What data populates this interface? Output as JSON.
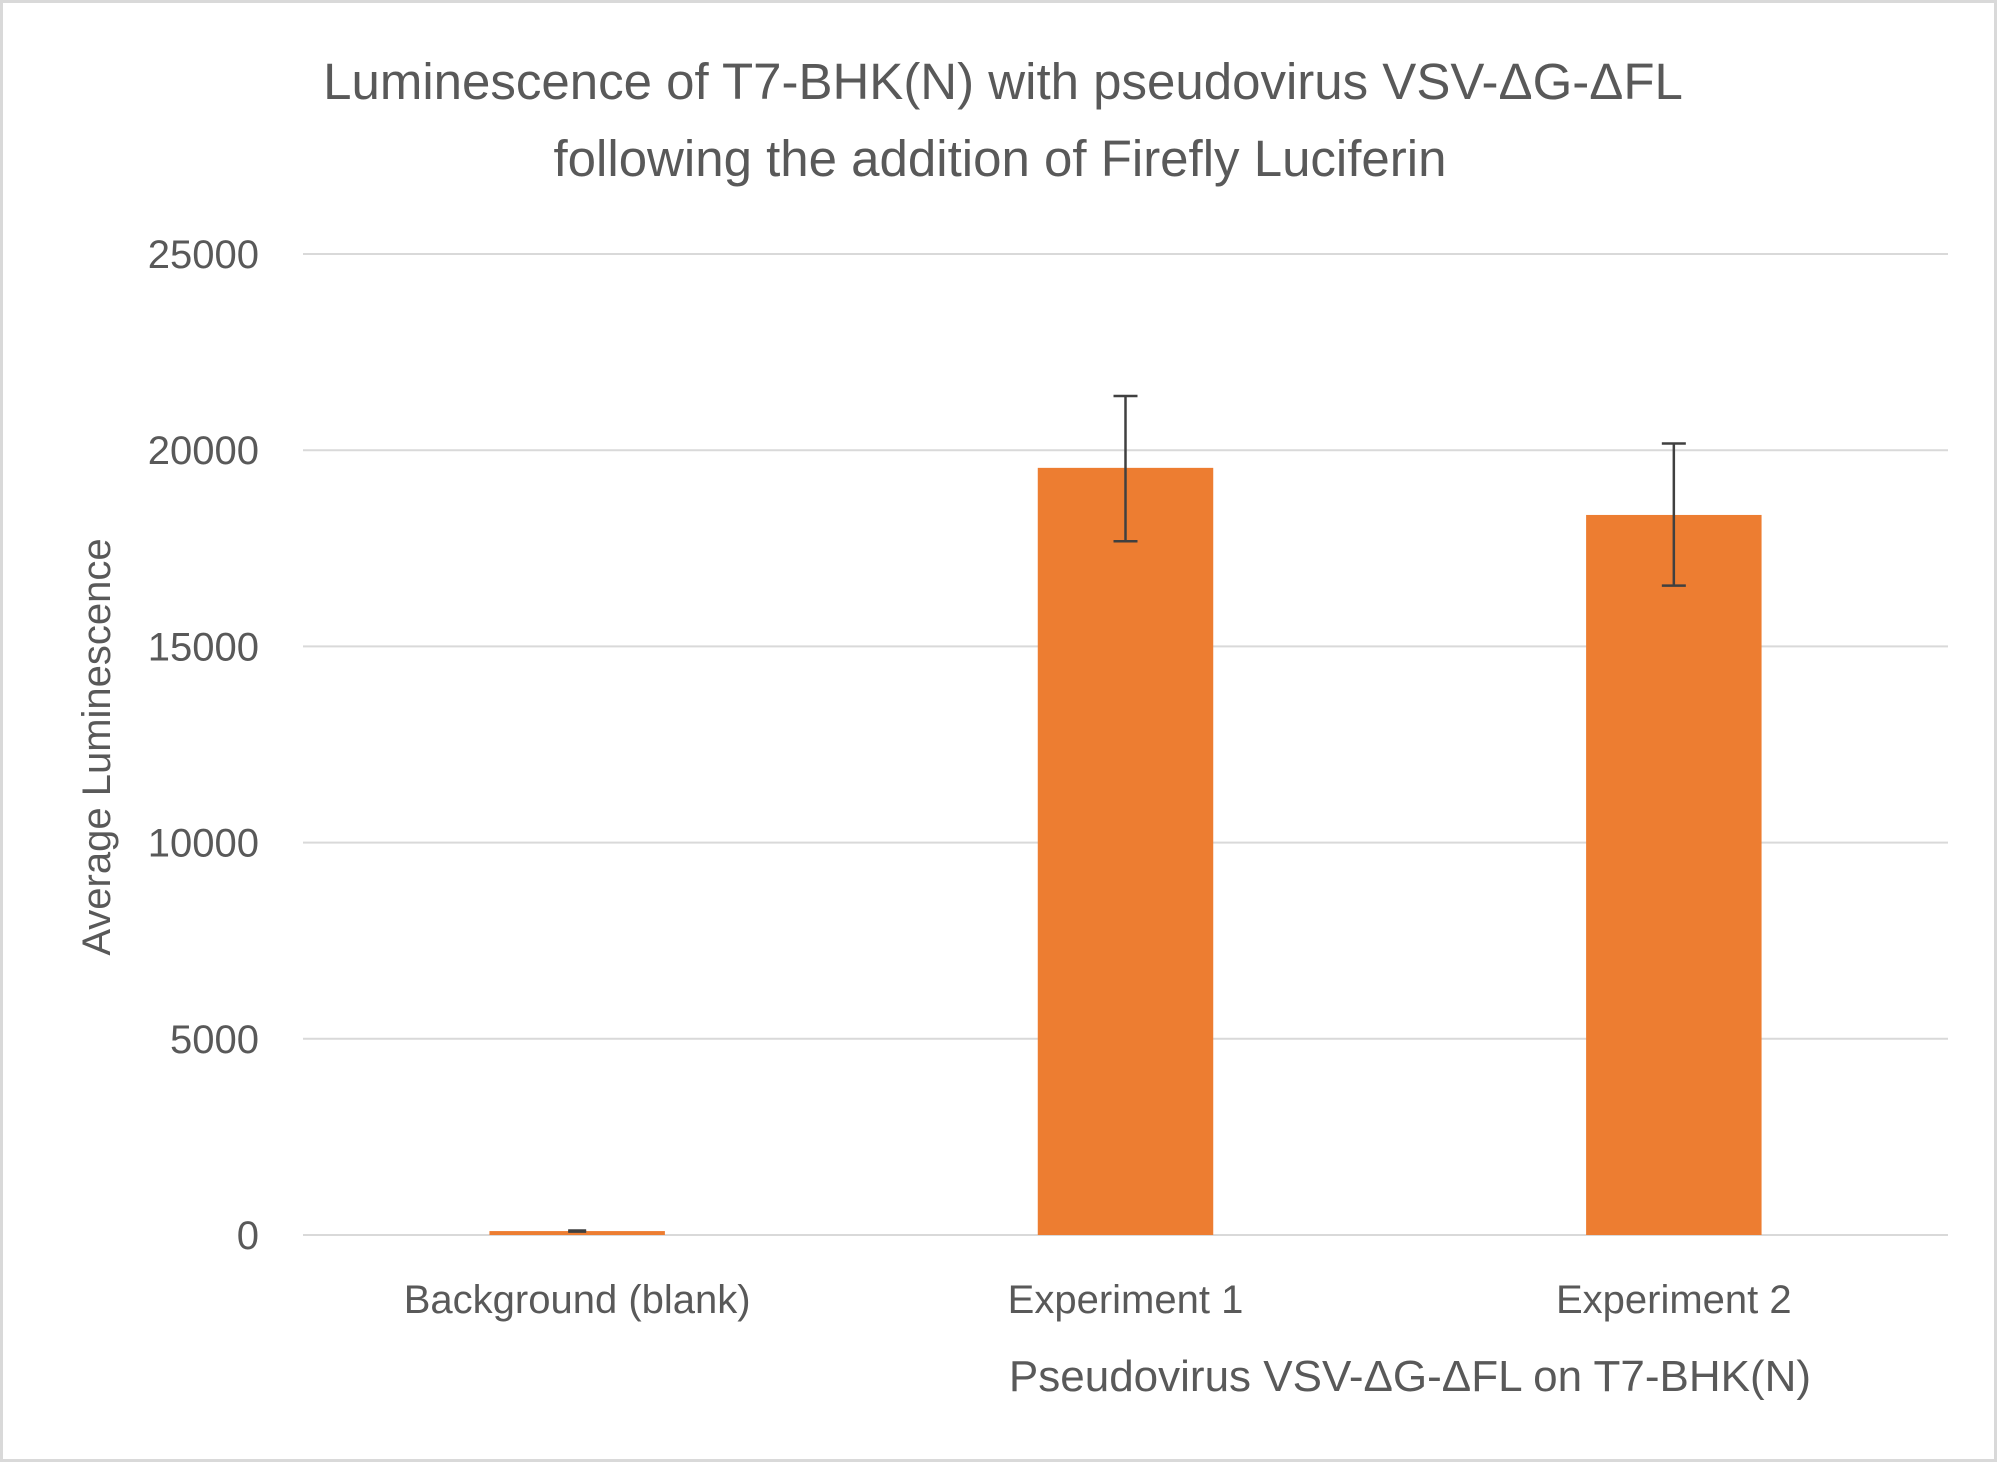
{
  "chart_data": {
    "type": "bar",
    "title_lines": [
      "Luminescence of T7-BHK(N) with pseudovirus VSV-ΔG-ΔFL",
      "following the addition of Firefly Luciferin"
    ],
    "xlabel": "Pseudovirus VSV-ΔG-ΔFL on T7-BHK(N)",
    "ylabel": "Average Luminescence",
    "categories": [
      "Background (blank)",
      "Experiment 1",
      "Experiment 2"
    ],
    "values": [
      100,
      19550,
      18350
    ],
    "error_low": [
      85,
      17680,
      16550
    ],
    "error_high": [
      115,
      21380,
      20170
    ],
    "ylim": [
      0,
      25000
    ],
    "yticks": [
      "0",
      "5000",
      "10000",
      "15000",
      "20000",
      "25000"
    ],
    "grid": true,
    "legend": "none",
    "colors": {
      "bar": "#ED7D31",
      "grid": "#d9d9d9",
      "text": "#595959",
      "error": "#404040"
    }
  }
}
